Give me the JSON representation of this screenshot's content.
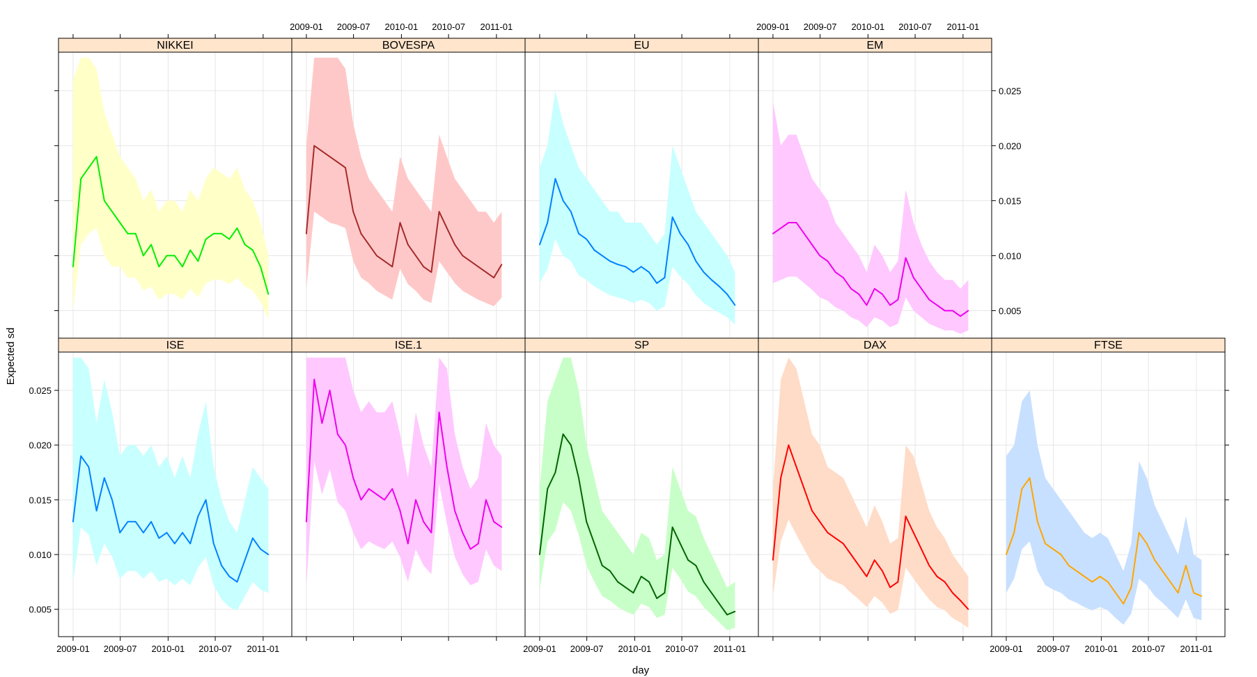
{
  "chart_data": {
    "type": "line",
    "layout": "lattice-panels",
    "title": "",
    "xlabel": "day",
    "ylabel": "Expected sd",
    "x_ticks": [
      "2009-01",
      "2009-07",
      "2010-01",
      "2010-07",
      "2011-01"
    ],
    "x_tick_days": [
      0,
      181,
      365,
      546,
      730
    ],
    "xlim_days": [
      -56,
      840
    ],
    "y_ticks": [
      "0.005",
      "0.010",
      "0.015",
      "0.020",
      "0.025"
    ],
    "y_tick_values": [
      0.005,
      0.01,
      0.015,
      0.02,
      0.025
    ],
    "ylim": [
      0.0025,
      0.0285
    ],
    "grid": true,
    "band_description": "shaded band around each series",
    "series": [
      {
        "name": "NIKKEI",
        "color": "#00ee00",
        "band_color": "#ffffc8",
        "x": [
          0,
          30,
          60,
          90,
          120,
          150,
          180,
          210,
          240,
          270,
          300,
          330,
          360,
          390,
          420,
          450,
          480,
          510,
          540,
          570,
          600,
          630,
          660,
          690,
          720,
          750
        ],
        "values": [
          0.009,
          0.017,
          0.018,
          0.019,
          0.015,
          0.014,
          0.013,
          0.012,
          0.012,
          0.01,
          0.011,
          0.009,
          0.01,
          0.01,
          0.009,
          0.0105,
          0.0095,
          0.0115,
          0.012,
          0.012,
          0.0115,
          0.0125,
          0.011,
          0.0105,
          0.009,
          0.0065
        ],
        "band_upper": [
          0.026,
          0.028,
          0.028,
          0.027,
          0.023,
          0.021,
          0.019,
          0.018,
          0.017,
          0.015,
          0.016,
          0.014,
          0.015,
          0.015,
          0.014,
          0.016,
          0.015,
          0.017,
          0.018,
          0.0175,
          0.017,
          0.018,
          0.016,
          0.015,
          0.013,
          0.01
        ],
        "band_lower": [
          0.005,
          0.011,
          0.012,
          0.0125,
          0.01,
          0.009,
          0.009,
          0.008,
          0.008,
          0.0068,
          0.0072,
          0.006,
          0.0065,
          0.0065,
          0.006,
          0.007,
          0.0062,
          0.0075,
          0.0078,
          0.0078,
          0.0074,
          0.008,
          0.0072,
          0.0068,
          0.0058,
          0.0042
        ]
      },
      {
        "name": "BOVESPA",
        "color": "#a52a2a",
        "band_color": "#ffc8c8",
        "x": [
          0,
          30,
          60,
          90,
          120,
          150,
          180,
          210,
          240,
          270,
          300,
          330,
          360,
          390,
          420,
          450,
          480,
          510,
          540,
          570,
          600,
          630,
          660,
          690,
          720,
          750
        ],
        "values": [
          0.012,
          0.02,
          0.0195,
          0.019,
          0.0185,
          0.018,
          0.014,
          0.012,
          0.011,
          0.01,
          0.0095,
          0.009,
          0.013,
          0.011,
          0.01,
          0.009,
          0.0085,
          0.014,
          0.0125,
          0.011,
          0.01,
          0.0095,
          0.009,
          0.0085,
          0.008,
          0.0092
        ],
        "band_upper": [
          0.02,
          0.028,
          0.028,
          0.028,
          0.028,
          0.027,
          0.022,
          0.019,
          0.017,
          0.016,
          0.015,
          0.014,
          0.019,
          0.017,
          0.016,
          0.015,
          0.014,
          0.021,
          0.019,
          0.017,
          0.016,
          0.015,
          0.014,
          0.014,
          0.013,
          0.014
        ],
        "band_lower": [
          0.007,
          0.014,
          0.0135,
          0.013,
          0.0128,
          0.0125,
          0.0095,
          0.008,
          0.0075,
          0.0068,
          0.0064,
          0.006,
          0.0088,
          0.0074,
          0.0068,
          0.006,
          0.0057,
          0.0095,
          0.0085,
          0.0075,
          0.0068,
          0.0064,
          0.006,
          0.0057,
          0.0054,
          0.0062
        ]
      },
      {
        "name": "EU",
        "color": "#0080ff",
        "band_color": "#c8ffff",
        "x": [
          0,
          30,
          60,
          90,
          120,
          150,
          180,
          210,
          240,
          270,
          300,
          330,
          360,
          390,
          420,
          450,
          480,
          510,
          540,
          570,
          600,
          630,
          660,
          690,
          720,
          750
        ],
        "values": [
          0.011,
          0.013,
          0.017,
          0.015,
          0.014,
          0.012,
          0.0115,
          0.0105,
          0.01,
          0.0095,
          0.0092,
          0.009,
          0.0085,
          0.009,
          0.0085,
          0.0075,
          0.008,
          0.0135,
          0.012,
          0.011,
          0.0095,
          0.0085,
          0.0078,
          0.0072,
          0.0065,
          0.0055
        ],
        "band_upper": [
          0.018,
          0.02,
          0.025,
          0.022,
          0.02,
          0.018,
          0.017,
          0.016,
          0.015,
          0.014,
          0.014,
          0.013,
          0.013,
          0.013,
          0.012,
          0.011,
          0.012,
          0.02,
          0.018,
          0.016,
          0.014,
          0.013,
          0.012,
          0.011,
          0.01,
          0.0085
        ],
        "band_lower": [
          0.0075,
          0.0088,
          0.0115,
          0.01,
          0.0095,
          0.0082,
          0.0078,
          0.0072,
          0.0068,
          0.0064,
          0.0062,
          0.006,
          0.0057,
          0.006,
          0.0057,
          0.005,
          0.0054,
          0.009,
          0.0081,
          0.0074,
          0.0064,
          0.0057,
          0.0052,
          0.0048,
          0.0044,
          0.0037
        ]
      },
      {
        "name": "EM",
        "color": "#ee00ee",
        "band_color": "#ffc8ff",
        "x": [
          0,
          30,
          60,
          90,
          120,
          150,
          180,
          210,
          240,
          270,
          300,
          330,
          360,
          390,
          420,
          450,
          480,
          510,
          540,
          570,
          600,
          630,
          660,
          690,
          720,
          750
        ],
        "values": [
          0.012,
          0.0125,
          0.013,
          0.013,
          0.012,
          0.011,
          0.01,
          0.0095,
          0.0085,
          0.008,
          0.007,
          0.0065,
          0.0055,
          0.007,
          0.0065,
          0.0055,
          0.006,
          0.0098,
          0.008,
          0.007,
          0.006,
          0.0055,
          0.005,
          0.005,
          0.0045,
          0.005
        ],
        "band_upper": [
          0.024,
          0.02,
          0.021,
          0.021,
          0.019,
          0.017,
          0.016,
          0.015,
          0.013,
          0.012,
          0.011,
          0.01,
          0.0085,
          0.011,
          0.01,
          0.0085,
          0.0095,
          0.016,
          0.013,
          0.011,
          0.0095,
          0.0085,
          0.0078,
          0.0078,
          0.007,
          0.0078
        ],
        "band_lower": [
          0.0075,
          0.0078,
          0.0081,
          0.0081,
          0.0075,
          0.0069,
          0.0062,
          0.0059,
          0.0053,
          0.005,
          0.0044,
          0.0041,
          0.0035,
          0.0044,
          0.0041,
          0.0035,
          0.0038,
          0.0062,
          0.005,
          0.0044,
          0.0038,
          0.0035,
          0.0032,
          0.0032,
          0.0029,
          0.0032
        ]
      },
      {
        "name": "ISE",
        "color": "#0080ff",
        "band_color": "#c8ffff",
        "x": [
          0,
          30,
          60,
          90,
          120,
          150,
          180,
          210,
          240,
          270,
          300,
          330,
          360,
          390,
          420,
          450,
          480,
          510,
          540,
          570,
          600,
          630,
          660,
          690,
          720,
          750
        ],
        "values": [
          0.013,
          0.019,
          0.018,
          0.014,
          0.017,
          0.015,
          0.012,
          0.013,
          0.013,
          0.012,
          0.013,
          0.0115,
          0.012,
          0.011,
          0.012,
          0.011,
          0.0135,
          0.015,
          0.011,
          0.009,
          0.008,
          0.0075,
          0.0095,
          0.0115,
          0.0105,
          0.01
        ],
        "band_upper": [
          0.028,
          0.028,
          0.027,
          0.022,
          0.026,
          0.023,
          0.019,
          0.02,
          0.02,
          0.019,
          0.02,
          0.018,
          0.019,
          0.017,
          0.019,
          0.017,
          0.021,
          0.024,
          0.018,
          0.015,
          0.013,
          0.012,
          0.015,
          0.018,
          0.017,
          0.016
        ],
        "band_lower": [
          0.0075,
          0.0125,
          0.0118,
          0.009,
          0.011,
          0.0098,
          0.0078,
          0.0085,
          0.0085,
          0.0078,
          0.0085,
          0.0075,
          0.0078,
          0.0072,
          0.0078,
          0.0072,
          0.0088,
          0.0098,
          0.0072,
          0.0059,
          0.0052,
          0.0049,
          0.0062,
          0.0075,
          0.0068,
          0.0065
        ]
      },
      {
        "name": "ISE.1",
        "color": "#ee00ee",
        "band_color": "#ffc8ff",
        "x": [
          0,
          30,
          60,
          90,
          120,
          150,
          180,
          210,
          240,
          270,
          300,
          330,
          360,
          390,
          420,
          450,
          480,
          510,
          540,
          570,
          600,
          630,
          660,
          690,
          720,
          750
        ],
        "values": [
          0.013,
          0.026,
          0.022,
          0.025,
          0.021,
          0.02,
          0.017,
          0.015,
          0.016,
          0.0155,
          0.015,
          0.016,
          0.014,
          0.011,
          0.015,
          0.013,
          0.012,
          0.023,
          0.018,
          0.014,
          0.012,
          0.0105,
          0.011,
          0.015,
          0.013,
          0.0125
        ],
        "band_upper": [
          0.028,
          0.028,
          0.028,
          0.028,
          0.028,
          0.028,
          0.025,
          0.023,
          0.024,
          0.023,
          0.023,
          0.024,
          0.021,
          0.017,
          0.023,
          0.02,
          0.018,
          0.028,
          0.027,
          0.021,
          0.018,
          0.016,
          0.017,
          0.022,
          0.02,
          0.019
        ],
        "band_lower": [
          0.007,
          0.0185,
          0.0155,
          0.0178,
          0.0148,
          0.014,
          0.012,
          0.0105,
          0.0112,
          0.0108,
          0.0105,
          0.0112,
          0.0098,
          0.0075,
          0.0105,
          0.009,
          0.0082,
          0.0165,
          0.0128,
          0.0098,
          0.0082,
          0.0072,
          0.0075,
          0.0105,
          0.009,
          0.0085
        ]
      },
      {
        "name": "SP",
        "color": "#006400",
        "band_color": "#c8ffc8",
        "x": [
          0,
          30,
          60,
          90,
          120,
          150,
          180,
          210,
          240,
          270,
          300,
          330,
          360,
          390,
          420,
          450,
          480,
          510,
          540,
          570,
          600,
          630,
          660,
          690,
          720,
          750
        ],
        "values": [
          0.01,
          0.016,
          0.0175,
          0.021,
          0.02,
          0.017,
          0.013,
          0.011,
          0.009,
          0.0085,
          0.0075,
          0.007,
          0.0065,
          0.008,
          0.0075,
          0.006,
          0.0065,
          0.0125,
          0.011,
          0.0095,
          0.009,
          0.0075,
          0.0065,
          0.0055,
          0.0045,
          0.0048
        ],
        "band_upper": [
          0.016,
          0.024,
          0.026,
          0.028,
          0.028,
          0.025,
          0.02,
          0.017,
          0.014,
          0.013,
          0.012,
          0.011,
          0.01,
          0.012,
          0.0115,
          0.0095,
          0.01,
          0.018,
          0.016,
          0.014,
          0.0135,
          0.0115,
          0.01,
          0.0085,
          0.007,
          0.0075
        ],
        "band_lower": [
          0.0068,
          0.0112,
          0.0122,
          0.0148,
          0.014,
          0.0118,
          0.009,
          0.0075,
          0.0062,
          0.0058,
          0.0052,
          0.0048,
          0.0045,
          0.0055,
          0.0052,
          0.0042,
          0.0045,
          0.0088,
          0.0078,
          0.0066,
          0.0062,
          0.0052,
          0.0045,
          0.0038,
          0.0031,
          0.0033
        ]
      },
      {
        "name": "DAX",
        "color": "#ff0000",
        "band_color": "#ffdcc8",
        "x": [
          0,
          30,
          60,
          90,
          120,
          150,
          180,
          210,
          240,
          270,
          300,
          330,
          360,
          390,
          420,
          450,
          480,
          510,
          540,
          570,
          600,
          630,
          660,
          690,
          720,
          750
        ],
        "values": [
          0.0095,
          0.017,
          0.02,
          0.018,
          0.016,
          0.014,
          0.013,
          0.012,
          0.0115,
          0.011,
          0.01,
          0.009,
          0.008,
          0.0095,
          0.0085,
          0.007,
          0.0075,
          0.0135,
          0.012,
          0.0105,
          0.009,
          0.008,
          0.0075,
          0.0065,
          0.0058,
          0.005
        ],
        "band_upper": [
          0.016,
          0.026,
          0.028,
          0.027,
          0.024,
          0.021,
          0.02,
          0.018,
          0.0175,
          0.017,
          0.0155,
          0.014,
          0.0125,
          0.0145,
          0.013,
          0.011,
          0.0115,
          0.02,
          0.019,
          0.0165,
          0.014,
          0.0125,
          0.0115,
          0.01,
          0.009,
          0.008
        ],
        "band_lower": [
          0.0062,
          0.0112,
          0.0132,
          0.0118,
          0.0105,
          0.0092,
          0.0085,
          0.0078,
          0.0075,
          0.0072,
          0.0065,
          0.0059,
          0.0052,
          0.0062,
          0.0056,
          0.0046,
          0.0049,
          0.0088,
          0.0078,
          0.0068,
          0.0059,
          0.0052,
          0.0049,
          0.0042,
          0.0038,
          0.0033
        ]
      },
      {
        "name": "FTSE",
        "color": "#ffa500",
        "band_color": "#c8e0ff",
        "x": [
          0,
          30,
          60,
          90,
          120,
          150,
          180,
          210,
          240,
          270,
          300,
          330,
          360,
          390,
          420,
          450,
          480,
          510,
          540,
          570,
          600,
          630,
          660,
          690,
          720,
          750
        ],
        "values": [
          0.01,
          0.012,
          0.016,
          0.017,
          0.013,
          0.011,
          0.0105,
          0.01,
          0.009,
          0.0085,
          0.008,
          0.0075,
          0.008,
          0.0075,
          0.0065,
          0.0055,
          0.007,
          0.012,
          0.011,
          0.0095,
          0.0085,
          0.0075,
          0.0065,
          0.009,
          0.0065,
          0.0062
        ],
        "band_upper": [
          0.019,
          0.02,
          0.024,
          0.025,
          0.02,
          0.017,
          0.016,
          0.015,
          0.014,
          0.013,
          0.012,
          0.0115,
          0.012,
          0.0115,
          0.01,
          0.0085,
          0.011,
          0.0185,
          0.017,
          0.0145,
          0.013,
          0.0115,
          0.01,
          0.0135,
          0.01,
          0.0095
        ],
        "band_lower": [
          0.0065,
          0.0078,
          0.0105,
          0.0112,
          0.0085,
          0.0072,
          0.0068,
          0.0065,
          0.0059,
          0.0056,
          0.0052,
          0.0049,
          0.0052,
          0.0049,
          0.0042,
          0.0036,
          0.0046,
          0.0078,
          0.0072,
          0.0062,
          0.0056,
          0.0049,
          0.0042,
          0.0059,
          0.0042,
          0.004
        ]
      }
    ]
  }
}
